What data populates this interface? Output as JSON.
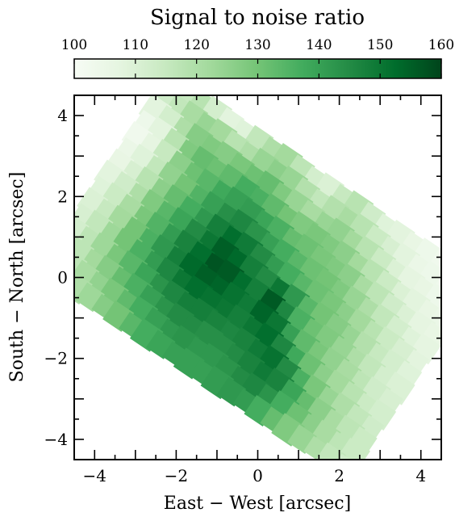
{
  "chart_data": {
    "type": "heatmap",
    "title": "Signal to noise ratio",
    "xlabel": "East − West [arcsec]",
    "ylabel": "South − North [arcsec]",
    "xlim": [
      -4.5,
      4.5
    ],
    "ylim": [
      -4.5,
      4.5
    ],
    "x_ticks": [
      -4,
      -2,
      0,
      2,
      4
    ],
    "x_tick_labels": [
      "−4",
      "−2",
      "0",
      "2",
      "4"
    ],
    "y_ticks": [
      -4,
      -2,
      0,
      2,
      4
    ],
    "y_tick_labels": [
      "−4",
      "−2",
      "0",
      "2",
      "4"
    ],
    "colorbar": {
      "label": "Signal to noise ratio",
      "min": 100,
      "max": 160,
      "ticks": [
        100,
        110,
        120,
        130,
        140,
        150,
        160
      ],
      "tick_labels": [
        "100",
        "110",
        "120",
        "130",
        "140",
        "150",
        "160"
      ],
      "location": "top",
      "colormap": "Greens",
      "color_stops": [
        "#f7fcf5",
        "#e5f5e0",
        "#c7e9c0",
        "#a1d99b",
        "#74c476",
        "#41ab5d",
        "#238b45",
        "#006d2c",
        "#00441b"
      ]
    },
    "field_rotation_deg": -34,
    "field_u_range": [
      -4.6,
      4.6
    ],
    "field_v_range": [
      -2.9,
      3.0
    ],
    "cell_size": 0.42,
    "rows": [
      [
        112,
        115,
        118,
        112,
        108,
        109,
        116,
        120,
        122,
        117,
        112,
        110,
        115,
        118,
        113,
        109,
        108,
        106,
        104,
        103,
        104,
        106
      ],
      [
        113,
        116,
        121,
        124,
        122,
        118,
        120,
        124,
        126,
        124,
        119,
        116,
        119,
        121,
        118,
        114,
        111,
        108,
        105,
        104,
        103,
        105
      ],
      [
        108,
        112,
        120,
        127,
        128,
        127,
        129,
        131,
        132,
        128,
        124,
        121,
        124,
        125,
        122,
        118,
        114,
        110,
        107,
        106,
        104,
        104
      ],
      [
        104,
        108,
        118,
        128,
        132,
        131,
        133,
        137,
        136,
        133,
        130,
        128,
        129,
        128,
        126,
        122,
        118,
        114,
        110,
        108,
        106,
        105
      ],
      [
        103,
        107,
        115,
        126,
        131,
        134,
        138,
        140,
        141,
        139,
        136,
        132,
        131,
        129,
        128,
        126,
        121,
        117,
        113,
        110,
        107,
        106
      ],
      [
        105,
        109,
        116,
        125,
        130,
        135,
        140,
        144,
        146,
        143,
        140,
        137,
        134,
        131,
        130,
        128,
        124,
        120,
        116,
        112,
        109,
        107
      ],
      [
        106,
        111,
        118,
        126,
        132,
        137,
        142,
        148,
        152,
        149,
        145,
        141,
        137,
        134,
        131,
        129,
        126,
        122,
        118,
        114,
        111,
        108
      ],
      [
        108,
        113,
        120,
        128,
        134,
        139,
        145,
        150,
        155,
        153,
        148,
        145,
        150,
        142,
        134,
        130,
        127,
        124,
        119,
        115,
        112,
        109
      ],
      [
        109,
        114,
        121,
        129,
        135,
        141,
        147,
        152,
        157,
        156,
        152,
        148,
        156,
        146,
        136,
        131,
        128,
        124,
        120,
        116,
        112,
        110
      ],
      [
        110,
        115,
        122,
        130,
        136,
        142,
        148,
        153,
        155,
        154,
        151,
        149,
        154,
        150,
        140,
        133,
        129,
        125,
        121,
        117,
        113,
        111
      ],
      [
        111,
        116,
        123,
        130,
        136,
        141,
        146,
        150,
        152,
        151,
        150,
        148,
        150,
        152,
        146,
        138,
        131,
        126,
        122,
        118,
        114,
        112
      ],
      [
        112,
        117,
        123,
        129,
        134,
        139,
        143,
        146,
        148,
        148,
        147,
        146,
        147,
        149,
        151,
        145,
        136,
        129,
        124,
        120,
        116,
        113
      ],
      [
        113,
        117,
        122,
        127,
        132,
        136,
        140,
        143,
        145,
        145,
        144,
        144,
        145,
        147,
        149,
        147,
        139,
        132,
        126,
        121,
        117,
        114
      ],
      [
        113,
        117,
        121,
        125,
        129,
        133,
        137,
        140,
        142,
        143,
        142,
        142,
        143,
        145,
        146,
        143,
        137,
        131,
        126,
        121,
        117,
        114
      ],
      [
        112,
        116,
        120,
        123,
        127,
        130,
        134,
        137,
        139,
        140,
        140,
        140,
        141,
        142,
        141,
        137,
        132,
        128,
        124,
        120,
        116,
        113
      ]
    ]
  }
}
